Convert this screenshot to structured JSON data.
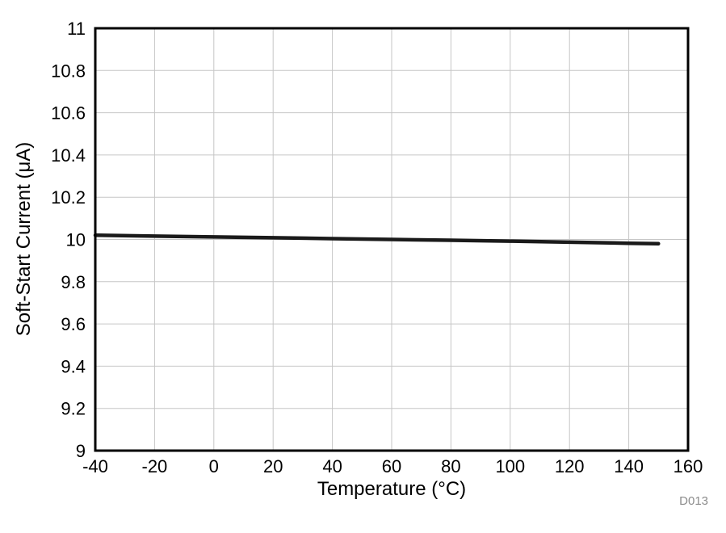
{
  "chart_data": {
    "type": "line",
    "title": "",
    "xlabel": "Temperature (°C)",
    "ylabel": "Soft-Start Current (μA)",
    "xlim": [
      -40,
      160
    ],
    "ylim": [
      9,
      11
    ],
    "xticks": [
      -40,
      -20,
      0,
      20,
      40,
      60,
      80,
      100,
      120,
      140,
      160
    ],
    "yticks": [
      9,
      9.2,
      9.4,
      9.6,
      9.8,
      10,
      10.2,
      10.4,
      10.6,
      10.8,
      11
    ],
    "grid": true,
    "legend_position": "none",
    "colors": {
      "grid": "#c6c6c6",
      "frame": "#000000",
      "line": "#1a1a1a",
      "background": "#ffffff",
      "footnote": "#8c8c8c"
    },
    "series": [
      {
        "name": "Soft-Start Current",
        "color": "#1a1a1a",
        "x": [
          -40,
          -20,
          0,
          20,
          40,
          60,
          80,
          100,
          120,
          140,
          150
        ],
        "y": [
          10.02,
          10.016,
          10.012,
          10.008,
          10.004,
          10.0,
          9.996,
          9.992,
          9.987,
          9.982,
          9.98
        ]
      }
    ]
  },
  "figure": {
    "footnote": "D013"
  }
}
